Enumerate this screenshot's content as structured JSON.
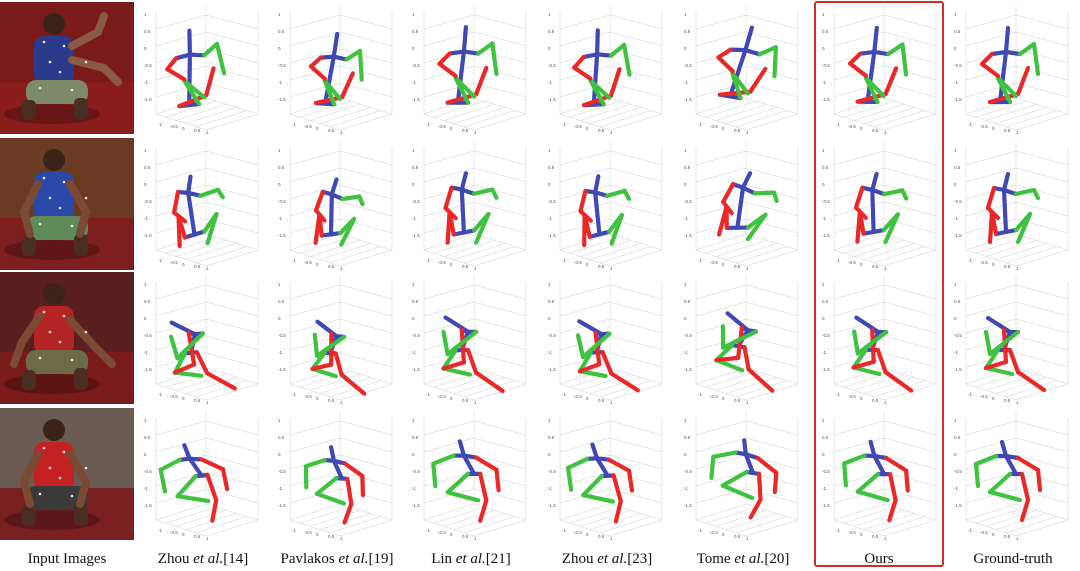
{
  "figure": {
    "columns": [
      {
        "id": "input",
        "text": "Input Images",
        "pre": "",
        "em": "",
        "ref": ""
      },
      {
        "id": "zhou14",
        "text": "",
        "pre": "Zhou ",
        "em": "et al.",
        "ref": "[14]"
      },
      {
        "id": "pavlakos19",
        "text": "",
        "pre": "Pavlakos ",
        "em": "et al.",
        "ref": "[19]"
      },
      {
        "id": "lin21",
        "text": "",
        "pre": "Lin ",
        "em": "et al.",
        "ref": "[21]"
      },
      {
        "id": "zhou23",
        "text": "",
        "pre": "Zhou ",
        "em": "et al.",
        "ref": "[23]"
      },
      {
        "id": "tome20",
        "text": "",
        "pre": "Tome ",
        "em": "et al.",
        "ref": "[20]"
      },
      {
        "id": "ours",
        "text": "Ours",
        "pre": "",
        "em": "",
        "ref": ""
      },
      {
        "id": "groundtruth",
        "text": "Ground-truth",
        "pre": "",
        "em": "",
        "ref": ""
      }
    ],
    "highlighted_column": "ours",
    "highlight_color": "#d52b2b",
    "limb_colors": {
      "spine": "#3f48b5",
      "left": "#ea2828",
      "right": "#3fc23f"
    },
    "rows": 4
  }
}
